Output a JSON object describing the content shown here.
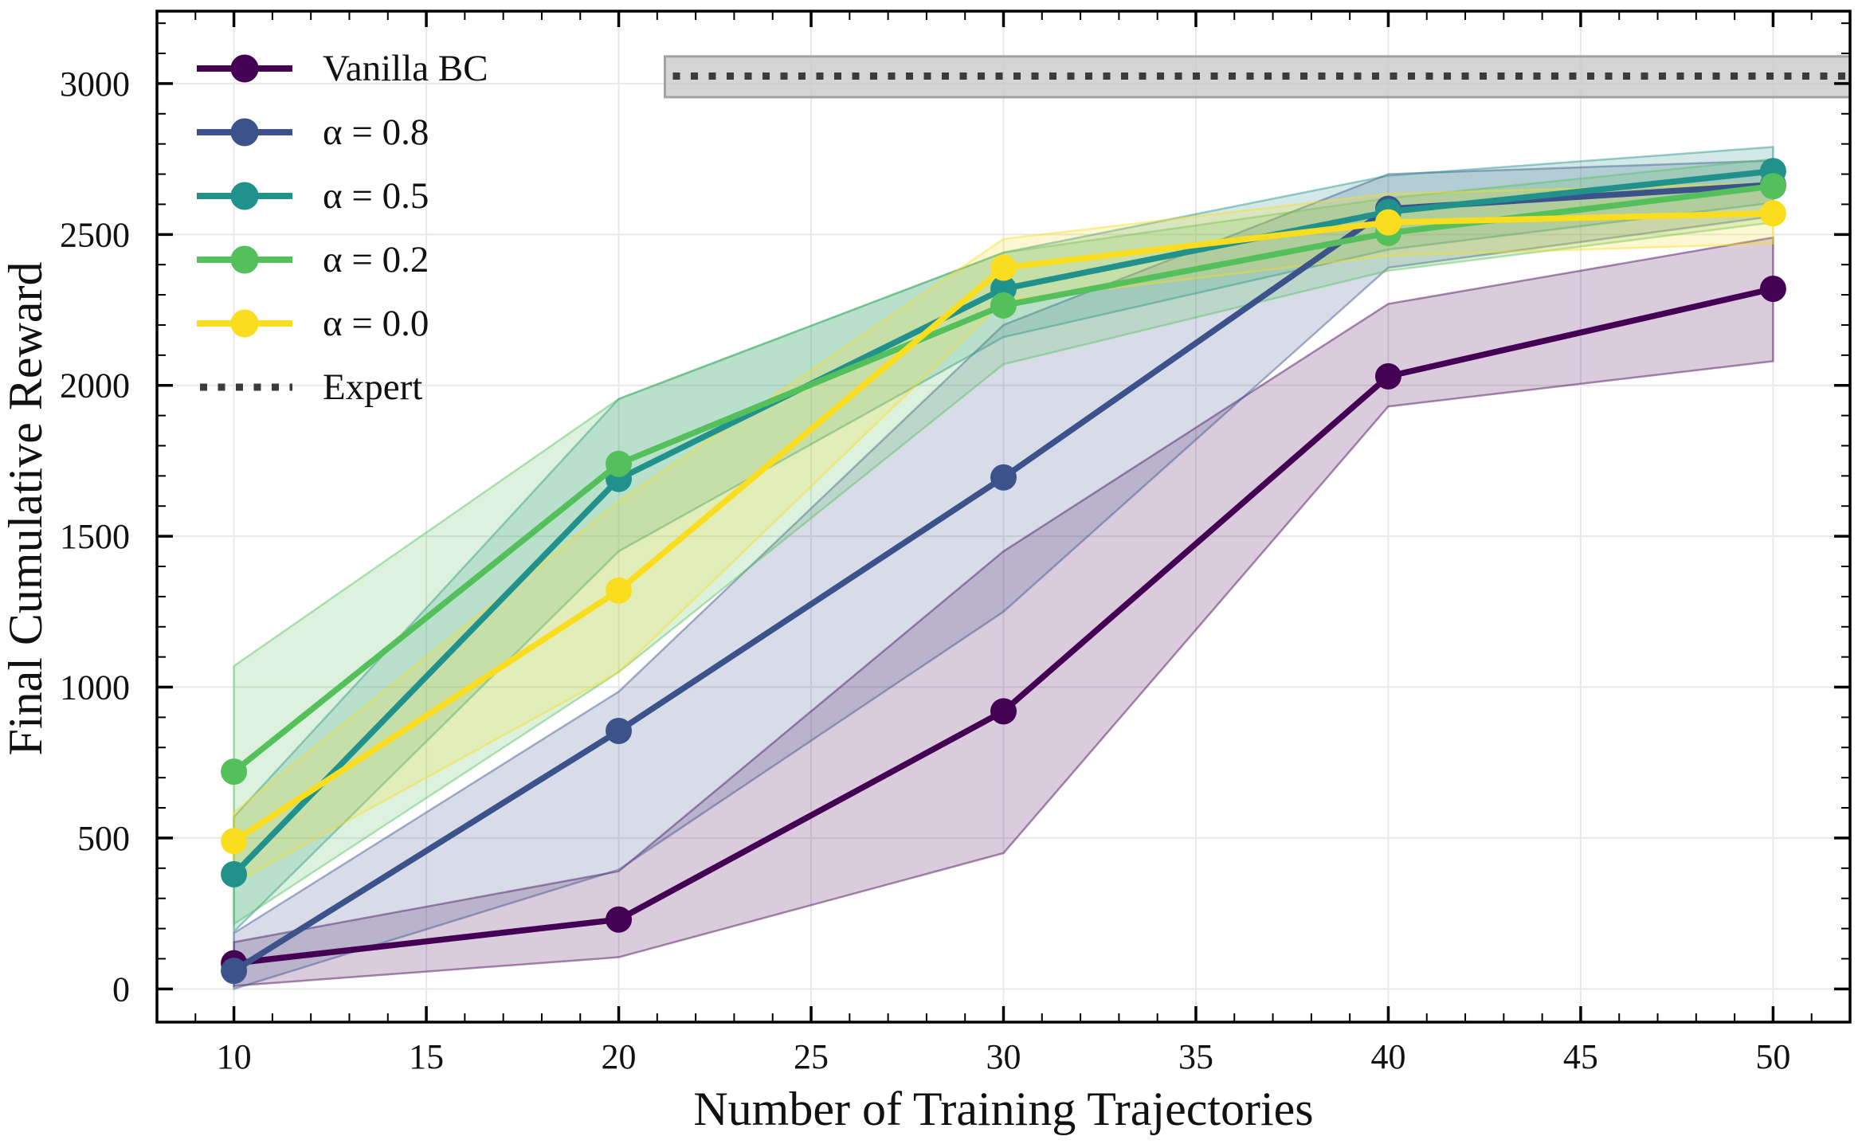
{
  "figure": {
    "background": "#ffffff",
    "grid_color": "#e8e8e8",
    "spine_color": "#000000",
    "text_color": "#111111"
  },
  "chart_data": {
    "type": "line",
    "title": "",
    "xlabel": "Number of Training Trajectories",
    "ylabel": "Final Cumulative Reward",
    "x": [
      10,
      20,
      30,
      40,
      50
    ],
    "x_ticks": [
      10,
      15,
      20,
      25,
      30,
      35,
      40,
      45,
      50
    ],
    "y_ticks": [
      0,
      500,
      1000,
      1500,
      2000,
      2500,
      3000
    ],
    "xlim": [
      8,
      52
    ],
    "ylim": [
      -110,
      3240
    ],
    "grid": true,
    "legend_position": "upper-left",
    "series": [
      {
        "name": "Vanilla BC",
        "color": "#440154",
        "values": [
          85,
          230,
          920,
          2030,
          2320
        ],
        "band_lo": [
          10,
          105,
          450,
          1930,
          2080
        ],
        "band_hi": [
          155,
          390,
          1450,
          2270,
          2490
        ]
      },
      {
        "name": "α = 0.8",
        "color": "#3b528b",
        "values": [
          60,
          855,
          1695,
          2585,
          2665
        ],
        "band_lo": [
          0,
          395,
          1250,
          2390,
          2560
        ],
        "band_hi": [
          185,
          985,
          2200,
          2700,
          2745
        ]
      },
      {
        "name": "α = 0.5",
        "color": "#21918c",
        "values": [
          380,
          1690,
          2320,
          2575,
          2710
        ],
        "band_lo": [
          190,
          1450,
          2160,
          2450,
          2605
        ],
        "band_hi": [
          570,
          1955,
          2440,
          2695,
          2790
        ]
      },
      {
        "name": "α = 0.2",
        "color": "#54c05c",
        "values": [
          720,
          1740,
          2265,
          2505,
          2660
        ],
        "band_lo": [
          215,
          1050,
          2070,
          2380,
          2540
        ],
        "band_hi": [
          1070,
          1955,
          2440,
          2620,
          2750
        ]
      },
      {
        "name": "α = 0.0",
        "color": "#fbdd20",
        "values": [
          490,
          1320,
          2390,
          2540,
          2570
        ],
        "band_lo": [
          350,
          1050,
          2280,
          2430,
          2470
        ],
        "band_hi": [
          585,
          1615,
          2485,
          2635,
          2670
        ]
      }
    ],
    "expert": {
      "label": "Expert",
      "value": 3025,
      "band": [
        2955,
        3090
      ],
      "x_start": 21.2,
      "x_end": 52,
      "line_color": "#3b3b3b",
      "band_fill": "#c9c9c9",
      "band_edge": "#a3a3a3"
    }
  }
}
